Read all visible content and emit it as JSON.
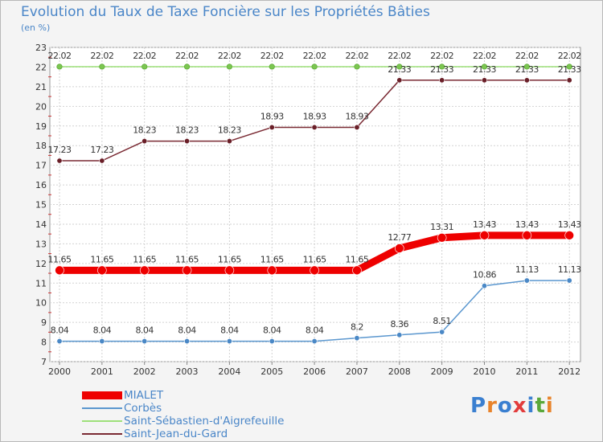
{
  "title": "Evolution du Taux de Taxe Foncière sur les Propriétés Bâties",
  "unit_label": "(en %)",
  "logo": {
    "letters": [
      "P",
      "r",
      "o",
      "x",
      "i",
      "t",
      "i"
    ],
    "colors": [
      "#3a7fd0",
      "#e8832a",
      "#3a7fd0",
      "#e23c3c",
      "#3a7fd0",
      "#5aa83a",
      "#e8832a"
    ]
  },
  "chart_data": {
    "type": "line",
    "x": [
      "2000",
      "2001",
      "2002",
      "2003",
      "2004",
      "2005",
      "2006",
      "2007",
      "2008",
      "2009",
      "2010",
      "2011",
      "2012"
    ],
    "ylim": [
      7,
      23
    ],
    "yticks": [
      "7",
      "8",
      "9",
      "10",
      "11",
      "12",
      "13",
      "14",
      "15",
      "16",
      "17",
      "18",
      "19",
      "20",
      "21",
      "22",
      "23"
    ],
    "grid": true,
    "legend_position": "bottom-left",
    "series": [
      {
        "name": "MIALET",
        "color": "#ee0000",
        "marker_color": "#ee0000",
        "values": [
          11.65,
          11.65,
          11.65,
          11.65,
          11.65,
          11.65,
          11.65,
          11.65,
          12.77,
          13.31,
          13.43,
          13.43,
          13.43
        ],
        "labels": [
          "11.65",
          "11.65",
          "11.65",
          "11.65",
          "11.65",
          "11.65",
          "11.65",
          "11.65",
          "12.77",
          "13.31",
          "13.43",
          "13.43",
          "13.43"
        ]
      },
      {
        "name": "Corbès",
        "color": "#5b97cf",
        "marker_color": "#4a88c6",
        "values": [
          8.04,
          8.04,
          8.04,
          8.04,
          8.04,
          8.04,
          8.04,
          8.2,
          8.36,
          8.51,
          10.86,
          11.13,
          11.13
        ],
        "labels": [
          "8.04",
          "8.04",
          "8.04",
          "8.04",
          "8.04",
          "8.04",
          "8.04",
          "8.2",
          "8.36",
          "8.51",
          "10.86",
          "11.13",
          "11.13"
        ]
      },
      {
        "name": "Saint-Sébastien-d'Aigrefeuille",
        "color": "#9ee07a",
        "marker_color": "#7cc651",
        "values": [
          22.02,
          22.02,
          22.02,
          22.02,
          22.02,
          22.02,
          22.02,
          22.02,
          22.02,
          22.02,
          22.02,
          22.02,
          22.02
        ],
        "labels": [
          "22.02",
          "22.02",
          "22.02",
          "22.02",
          "22.02",
          "22.02",
          "22.02",
          "22.02",
          "22.02",
          "22.02",
          "22.02",
          "22.02",
          "22.02"
        ]
      },
      {
        "name": "Saint-Jean-du-Gard",
        "color": "#7a2a33",
        "marker_color": "#6a1f28",
        "values": [
          17.23,
          17.23,
          18.23,
          18.23,
          18.23,
          18.93,
          18.93,
          18.93,
          21.33,
          21.33,
          21.33,
          21.33,
          21.33
        ],
        "labels": [
          "17.23",
          "17.23",
          "18.23",
          "18.23",
          "18.23",
          "18.93",
          "18.93",
          "18.93",
          "21.33",
          "21.33",
          "21.33",
          "21.33",
          "21.33"
        ]
      }
    ]
  }
}
